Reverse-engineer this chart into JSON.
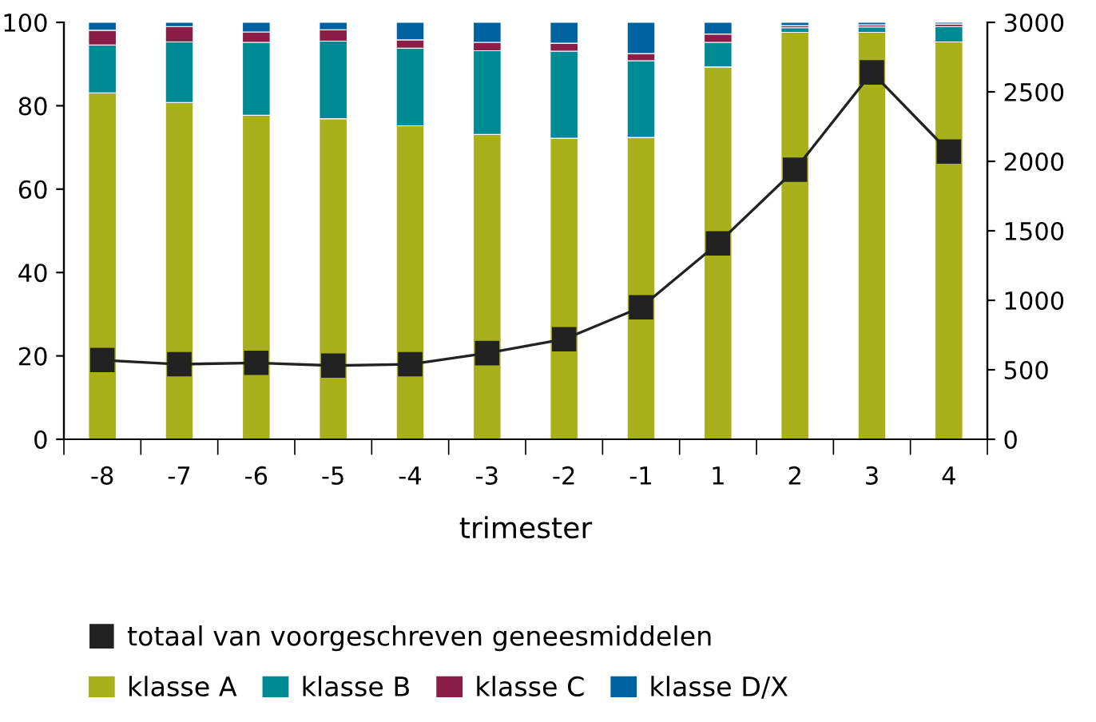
{
  "chart_data": {
    "type": "bar",
    "stacked": true,
    "xlabel": "trimester",
    "categories": [
      "-8",
      "-7",
      "-6",
      "-5",
      "-4",
      "-3",
      "-2",
      "-1",
      "1",
      "2",
      "3",
      "4"
    ],
    "series": [
      {
        "name": "totaal van voorgeschreven geneesmiddelen",
        "type": "line",
        "axis": "y2",
        "color": "#222222",
        "marker": "square",
        "line_style": "solid",
        "values": [
          570,
          540,
          550,
          530,
          540,
          620,
          720,
          950,
          1410,
          1940,
          2640,
          2070
        ]
      },
      {
        "name": "klasse A",
        "color": "#a8b11c",
        "values": [
          83.1,
          80.8,
          77.7,
          76.9,
          75.2,
          73.1,
          72.2,
          72.4,
          89.3,
          97.6,
          97.6,
          95.3
        ]
      },
      {
        "name": "klasse B",
        "color": "#008b94",
        "values": [
          11.5,
          14.5,
          17.5,
          18.6,
          18.6,
          20.1,
          20.9,
          18.4,
          5.9,
          1.1,
          1.3,
          3.7
        ]
      },
      {
        "name": "klasse C",
        "color": "#8b1e48",
        "values": [
          3.5,
          3.7,
          2.5,
          2.7,
          2.0,
          2.0,
          1.9,
          1.7,
          2.0,
          0.5,
          0.5,
          0.6
        ]
      },
      {
        "name": "klasse D/X",
        "color": "#0062a0",
        "values": [
          1.9,
          1.0,
          2.3,
          1.8,
          4.2,
          4.8,
          5.0,
          7.5,
          2.8,
          0.8,
          0.6,
          0.4
        ]
      }
    ],
    "ylim": [
      0,
      100
    ],
    "yticks": [
      0,
      20,
      40,
      60,
      80,
      100
    ],
    "y2lim": [
      0,
      3000
    ],
    "y2ticks": [
      0,
      500,
      1000,
      1500,
      2000,
      2500,
      3000
    ],
    "grid": false,
    "legend": "bottom"
  }
}
